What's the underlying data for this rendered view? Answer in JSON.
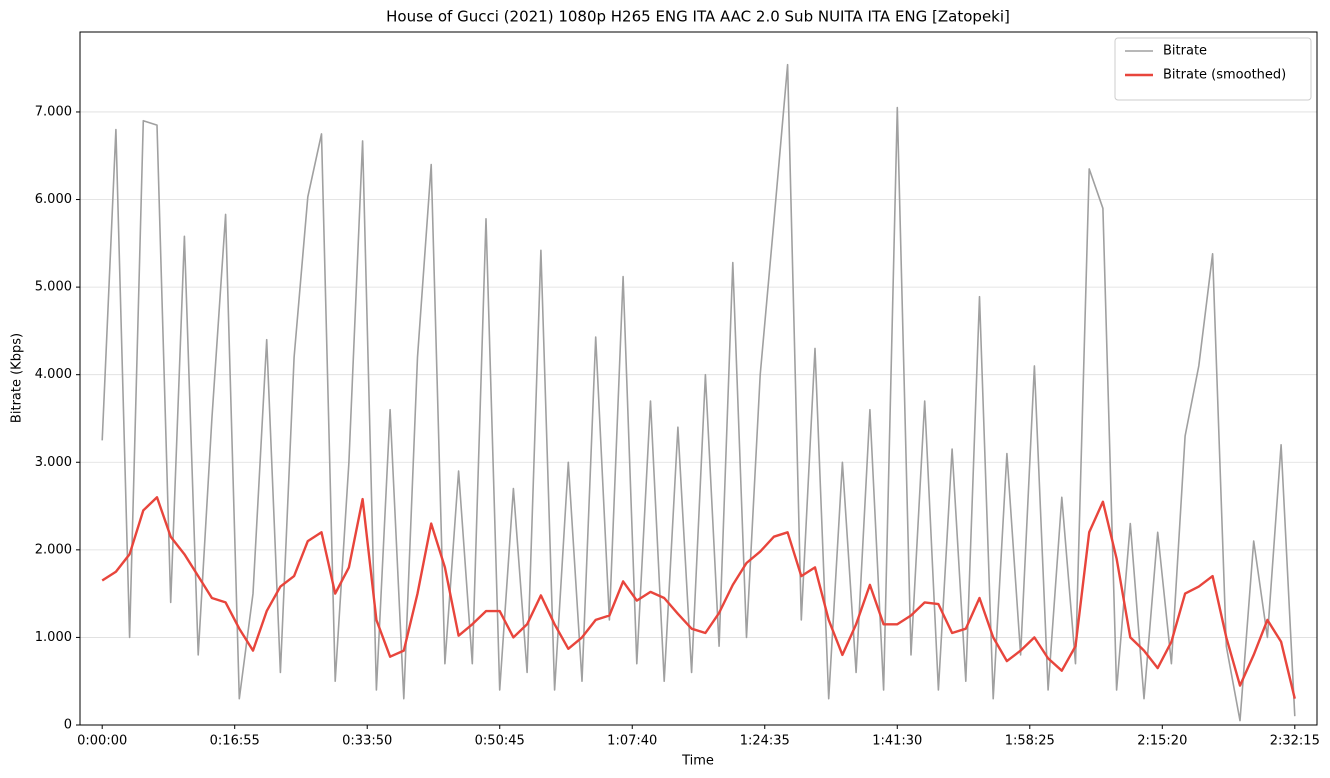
{
  "chart_data": {
    "type": "line",
    "title": "House of Gucci (2021) 1080p H265 ENG ITA AAC 2.0 Sub NUITA ITA ENG [Zatopeki]",
    "xlabel": "Time",
    "ylabel": "Bitrate (Kbps)",
    "x": [
      0,
      105,
      210,
      315,
      420,
      525,
      630,
      735,
      840,
      945,
      1050,
      1155,
      1260,
      1365,
      1470,
      1575,
      1680,
      1785,
      1890,
      1995,
      2100,
      2205,
      2310,
      2415,
      2520,
      2625,
      2730,
      2835,
      2940,
      3045,
      3150,
      3255,
      3360,
      3465,
      3570,
      3675,
      3780,
      3885,
      3990,
      4095,
      4200,
      4305,
      4410,
      4515,
      4620,
      4725,
      4830,
      4935,
      5040,
      5145,
      5250,
      5355,
      5460,
      5565,
      5670,
      5775,
      5880,
      5985,
      6090,
      6195,
      6300,
      6405,
      6510,
      6615,
      6720,
      6825,
      6930,
      7035,
      7140,
      7245,
      7350,
      7455,
      7560,
      7665,
      7770,
      7875,
      7980,
      8085,
      8190,
      8295,
      8400,
      8505,
      8610,
      8715,
      8820,
      8925,
      9030,
      9135
    ],
    "series": [
      {
        "name": "Bitrate",
        "color": "#a0a0a0",
        "width": 1.6,
        "values": [
          3250,
          6800,
          1000,
          6900,
          6850,
          1400,
          5580,
          800,
          3500,
          5830,
          300,
          1500,
          4400,
          600,
          4200,
          6030,
          6750,
          500,
          3000,
          6670,
          400,
          3600,
          300,
          4200,
          6400,
          700,
          2900,
          700,
          5780,
          400,
          2700,
          600,
          5420,
          400,
          3000,
          500,
          4430,
          1200,
          5120,
          700,
          3700,
          500,
          3400,
          600,
          4000,
          900,
          5280,
          1000,
          4000,
          5750,
          7540,
          1200,
          4300,
          300,
          3000,
          600,
          3600,
          400,
          7050,
          800,
          3700,
          400,
          3150,
          500,
          4890,
          300,
          3100,
          800,
          4100,
          400,
          2600,
          700,
          6350,
          5900,
          400,
          2300,
          300,
          2200,
          700,
          3300,
          4100,
          5380,
          900,
          50,
          2100,
          1000,
          3200,
          100
        ]
      },
      {
        "name": "Bitrate (smoothed)",
        "color": "#e8453c",
        "width": 2.4,
        "values": [
          1650,
          1750,
          1950,
          2450,
          2600,
          2150,
          1950,
          1700,
          1450,
          1400,
          1100,
          850,
          1300,
          1580,
          1700,
          2100,
          2200,
          1500,
          1800,
          2580,
          1200,
          780,
          850,
          1500,
          2300,
          1800,
          1020,
          1150,
          1300,
          1300,
          1000,
          1150,
          1480,
          1150,
          870,
          1000,
          1200,
          1250,
          1640,
          1420,
          1520,
          1450,
          1270,
          1100,
          1050,
          1280,
          1600,
          1850,
          1980,
          2150,
          2200,
          1700,
          1800,
          1200,
          800,
          1150,
          1600,
          1150,
          1150,
          1250,
          1400,
          1380,
          1050,
          1100,
          1450,
          1000,
          730,
          850,
          1000,
          760,
          620,
          900,
          2200,
          2550,
          1900,
          1000,
          850,
          650,
          950,
          1500,
          1580,
          1700,
          1000,
          450,
          800,
          1200,
          950,
          300
        ]
      }
    ],
    "xlim": [
      -170,
      9305
    ],
    "xticks": [
      {
        "value": 0,
        "label": "0:00:00"
      },
      {
        "value": 1015,
        "label": "0:16:55"
      },
      {
        "value": 2030,
        "label": "0:33:50"
      },
      {
        "value": 3045,
        "label": "0:50:45"
      },
      {
        "value": 4060,
        "label": "1:07:40"
      },
      {
        "value": 5075,
        "label": "1:24:35"
      },
      {
        "value": 6090,
        "label": "1:41:30"
      },
      {
        "value": 7105,
        "label": "1:58:25"
      },
      {
        "value": 8120,
        "label": "2:15:20"
      },
      {
        "value": 9135,
        "label": "2:32:15"
      }
    ],
    "ylim": [
      0,
      7913
    ],
    "yticks": [
      0,
      {
        "value": 1000,
        "label": "1.000"
      },
      {
        "value": 2000,
        "label": "2.000"
      },
      {
        "value": 3000,
        "label": "3.000"
      },
      {
        "value": 4000,
        "label": "4.000"
      },
      {
        "value": 5000,
        "label": "5.000"
      },
      {
        "value": 6000,
        "label": "6.000"
      },
      {
        "value": 7000,
        "label": "7.000"
      }
    ],
    "grid": true,
    "legend": "upper right"
  }
}
